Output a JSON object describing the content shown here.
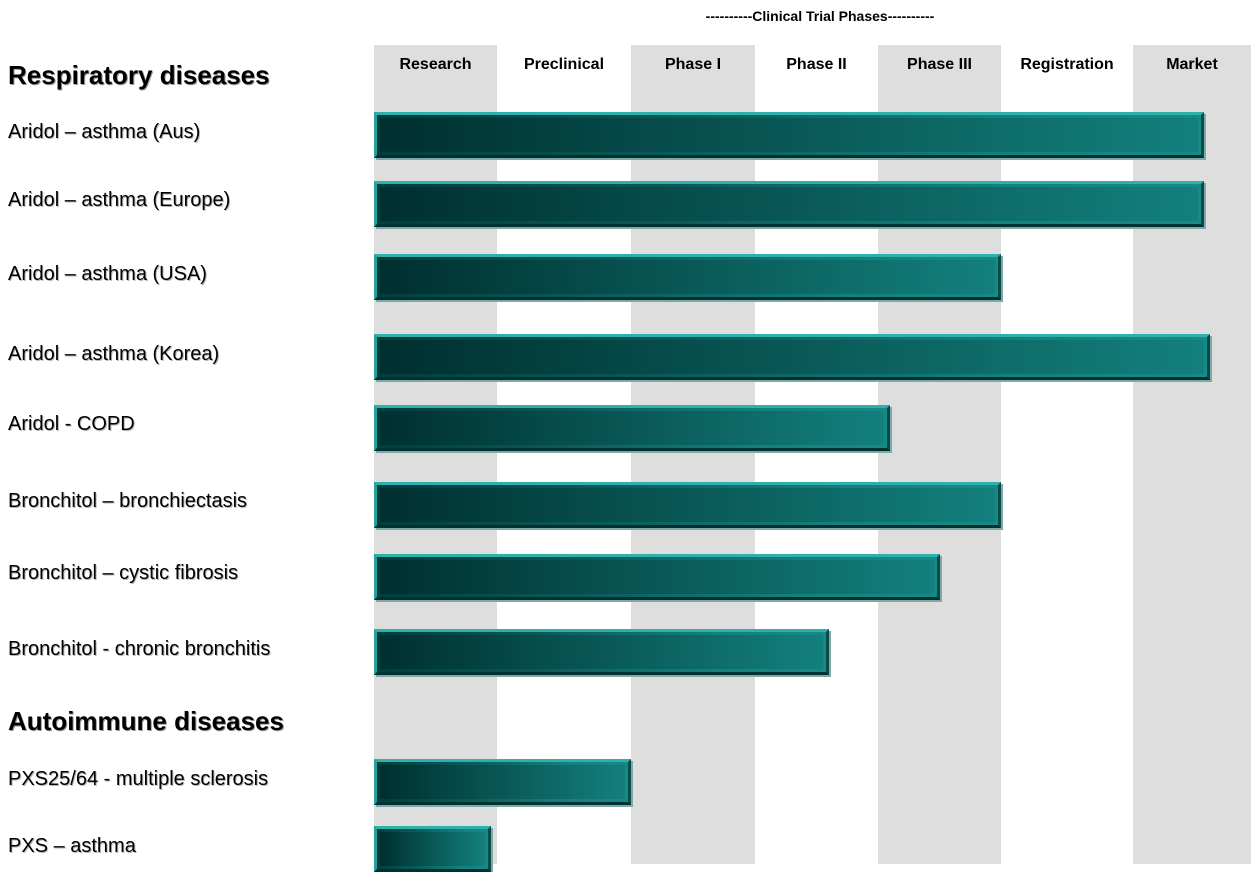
{
  "chart_data": {
    "type": "bar",
    "title": "----------Clinical Trial Phases----------",
    "phases": [
      "Research",
      "Preclinical",
      "Phase I",
      "Phase II",
      "Phase III",
      "Registration",
      "Market"
    ],
    "sections": [
      {
        "title": "Respiratory diseases",
        "rows": [
          {
            "label": "Aridol – asthma (Aus)",
            "progress_phases": 6.6
          },
          {
            "label": "Aridol – asthma (Europe)",
            "progress_phases": 6.6
          },
          {
            "label": "Aridol – asthma (USA)",
            "progress_phases": 5.0
          },
          {
            "label": "Aridol – asthma (Korea)",
            "progress_phases": 6.65
          },
          {
            "label": "Aridol - COPD",
            "progress_phases": 4.1
          },
          {
            "label": "Bronchitol – bronchiectasis",
            "progress_phases": 5.0
          },
          {
            "label": "Bronchitol – cystic fibrosis",
            "progress_phases": 4.5
          },
          {
            "label": "Bronchitol - chronic bronchitis",
            "progress_phases": 3.6
          }
        ]
      },
      {
        "title": "Autoimmune diseases",
        "rows": [
          {
            "label": "PXS25/64 - multiple sclerosis",
            "progress_phases": 2.0
          },
          {
            "label": "PXS – asthma",
            "progress_phases": 0.95
          }
        ]
      }
    ]
  }
}
